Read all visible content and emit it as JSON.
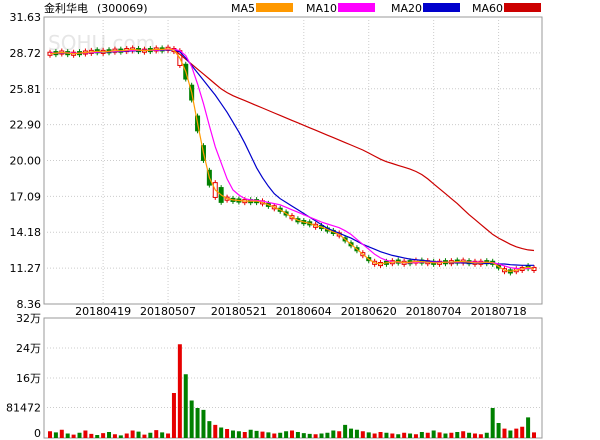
{
  "header": {
    "title": "金利华电",
    "code": "(300069)",
    "watermark": "SOHU.com"
  },
  "legend": [
    {
      "name": "MA5",
      "color": "#ff9900"
    },
    {
      "name": "MA10",
      "color": "#ff00ff"
    },
    {
      "name": "MA20",
      "color": "#0000cc"
    },
    {
      "name": "MA60",
      "color": "#cc0000"
    }
  ],
  "colors": {
    "up": "#e60000",
    "down": "#008000",
    "grid": "#cccccc",
    "border": "#999999"
  },
  "chart_data": [
    {
      "type": "candlestick",
      "price_axis": {
        "ticks": [
          "31.63",
          "28.72",
          "25.81",
          "22.90",
          "20.00",
          "17.09",
          "14.18",
          "11.27",
          "8.36"
        ],
        "ylim": [
          8.36,
          31.63
        ]
      },
      "x_tick_labels": [
        "20180419",
        "20180507",
        "20180521",
        "20180604",
        "20180620",
        "20180704",
        "20180718"
      ],
      "ma5": [
        28.65,
        28.7,
        28.75,
        28.7,
        28.65,
        28.7,
        28.75,
        28.8,
        28.85,
        28.8,
        28.85,
        28.9,
        28.9,
        28.95,
        29.0,
        28.95,
        28.9,
        28.95,
        29.0,
        29.0,
        29.05,
        28.95,
        28.3,
        27.2,
        25.5,
        23.0,
        20.6,
        18.6,
        17.6,
        17.2,
        16.9,
        16.8,
        16.75,
        16.7,
        16.7,
        16.7,
        16.6,
        16.4,
        16.2,
        16.0,
        15.7,
        15.4,
        15.15,
        15.0,
        14.9,
        14.7,
        14.6,
        14.4,
        14.2,
        14.0,
        13.6,
        13.2,
        12.8,
        12.4,
        12.0,
        11.7,
        11.6,
        11.7,
        11.75,
        11.8,
        11.7,
        11.75,
        11.8,
        11.8,
        11.75,
        11.7,
        11.7,
        11.75,
        11.75,
        11.8,
        11.8,
        11.75,
        11.7,
        11.7,
        11.75,
        11.7,
        11.4,
        11.1,
        11.0,
        11.1,
        11.2,
        11.35,
        11.2
      ],
      "ma10": [
        28.7,
        28.7,
        28.72,
        28.72,
        28.7,
        28.7,
        28.72,
        28.75,
        28.78,
        28.8,
        28.82,
        28.85,
        28.87,
        28.9,
        28.92,
        28.93,
        28.93,
        28.93,
        28.95,
        28.97,
        29.0,
        29.0,
        28.9,
        28.5,
        27.6,
        26.2,
        24.6,
        22.8,
        21.1,
        19.8,
        18.5,
        17.6,
        17.2,
        16.9,
        16.8,
        16.75,
        16.7,
        16.6,
        16.5,
        16.4,
        16.2,
        16.0,
        15.8,
        15.6,
        15.4,
        15.2,
        15.0,
        14.85,
        14.7,
        14.55,
        14.3,
        14.0,
        13.6,
        13.2,
        12.8,
        12.4,
        12.1,
        11.9,
        11.8,
        11.75,
        11.7,
        11.7,
        11.72,
        11.75,
        11.75,
        11.75,
        11.75,
        11.75,
        11.75,
        11.76,
        11.77,
        11.77,
        11.76,
        11.75,
        11.74,
        11.72,
        11.6,
        11.45,
        11.3,
        11.25,
        11.2,
        11.25,
        11.25
      ],
      "ma20": [
        28.7,
        28.7,
        28.7,
        28.7,
        28.7,
        28.7,
        28.72,
        28.74,
        28.76,
        28.78,
        28.8,
        28.82,
        28.84,
        28.86,
        28.88,
        28.9,
        28.92,
        28.93,
        28.94,
        28.95,
        28.96,
        28.97,
        28.8,
        28.3,
        27.7,
        27.1,
        26.5,
        25.9,
        25.3,
        24.6,
        23.9,
        23.1,
        22.3,
        21.4,
        20.4,
        19.4,
        18.6,
        17.9,
        17.3,
        16.9,
        16.6,
        16.3,
        16.0,
        15.7,
        15.4,
        15.1,
        14.8,
        14.5,
        14.3,
        14.1,
        13.9,
        13.7,
        13.45,
        13.2,
        13.0,
        12.8,
        12.6,
        12.45,
        12.3,
        12.2,
        12.1,
        12.0,
        11.95,
        11.9,
        11.85,
        11.8,
        11.77,
        11.74,
        11.72,
        11.7,
        11.69,
        11.68,
        11.67,
        11.66,
        11.65,
        11.65,
        11.62,
        11.6,
        11.55,
        11.52,
        11.5,
        11.5,
        11.5
      ],
      "ma60": [
        null,
        null,
        null,
        null,
        null,
        null,
        null,
        null,
        null,
        null,
        null,
        null,
        null,
        null,
        null,
        null,
        null,
        null,
        null,
        null,
        null,
        29.0,
        28.6,
        28.2,
        27.8,
        27.4,
        27.0,
        26.6,
        26.2,
        25.8,
        25.5,
        25.25,
        25.05,
        24.85,
        24.65,
        24.45,
        24.25,
        24.05,
        23.85,
        23.65,
        23.45,
        23.25,
        23.05,
        22.85,
        22.65,
        22.45,
        22.25,
        22.05,
        21.85,
        21.65,
        21.45,
        21.25,
        21.05,
        20.85,
        20.6,
        20.35,
        20.1,
        19.9,
        19.75,
        19.6,
        19.45,
        19.3,
        19.1,
        18.85,
        18.5,
        18.1,
        17.7,
        17.3,
        16.9,
        16.5,
        16.05,
        15.6,
        15.2,
        14.8,
        14.4,
        14.0,
        13.7,
        13.45,
        13.2,
        13.0,
        12.85,
        12.75,
        12.7
      ],
      "volume_axis": {
        "ticks": [
          "32万",
          "24万",
          "16万",
          "81472",
          "0"
        ],
        "ylim": [
          0,
          320000
        ]
      },
      "volume": [
        18000,
        15000,
        22000,
        12000,
        9000,
        14000,
        20000,
        11000,
        8000,
        13000,
        16000,
        10000,
        7000,
        12000,
        20000,
        17000,
        9000,
        14000,
        21000,
        15000,
        12000,
        120000,
        250000,
        170000,
        100000,
        80000,
        75000,
        45000,
        35000,
        28000,
        24000,
        20000,
        18000,
        16000,
        22000,
        19000,
        17000,
        15000,
        12000,
        14000,
        18000,
        20000,
        16000,
        13000,
        11000,
        10000,
        12000,
        14000,
        20000,
        18000,
        35000,
        25000,
        22000,
        18000,
        15000,
        12000,
        16000,
        14000,
        12000,
        10000,
        14000,
        12000,
        10000,
        16000,
        14000,
        20000,
        15000,
        12000,
        14000,
        16000,
        18000,
        14000,
        12000,
        10000,
        14000,
        80000,
        40000,
        25000,
        20000,
        25000,
        30000,
        55000,
        15000
      ],
      "volume_up": [
        true,
        false,
        true,
        false,
        true,
        false,
        true,
        true,
        false,
        true,
        false,
        true,
        false,
        true,
        true,
        false,
        true,
        false,
        true,
        false,
        true,
        true,
        true,
        false,
        false,
        false,
        false,
        false,
        true,
        false,
        true,
        false,
        false,
        true,
        false,
        false,
        true,
        false,
        true,
        false,
        false,
        true,
        false,
        false,
        false,
        true,
        false,
        false,
        false,
        true,
        false,
        false,
        false,
        true,
        false,
        true,
        true,
        false,
        true,
        false,
        true,
        false,
        true,
        false,
        true,
        false,
        true,
        false,
        true,
        false,
        true,
        false,
        true,
        true,
        false,
        false,
        false,
        true,
        false,
        true,
        true,
        false,
        true
      ]
    }
  ]
}
